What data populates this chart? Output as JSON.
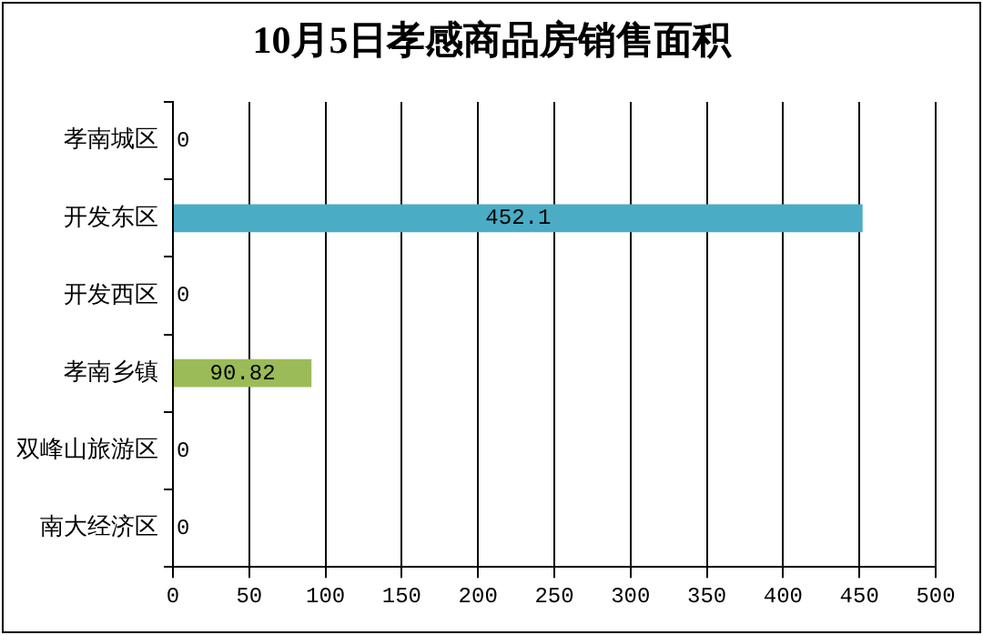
{
  "chart_data": {
    "type": "bar",
    "orientation": "horizontal",
    "title": "10月5日孝感商品房销售面积",
    "categories": [
      "孝南城区",
      "开发东区",
      "开发西区",
      "孝南乡镇",
      "双峰山旅游区",
      "南大经济区"
    ],
    "values": [
      0,
      452.1,
      0,
      90.82,
      0,
      0
    ],
    "colors": [
      "#4f81bd",
      "#4bacc6",
      "#c0504d",
      "#9bbb59",
      "#8064a2",
      "#f79646"
    ],
    "xlim": [
      0,
      500
    ],
    "xticks": [
      0,
      50,
      100,
      150,
      200,
      250,
      300,
      350,
      400,
      450,
      500
    ],
    "grid": "x",
    "data_labels": true,
    "legend": false
  }
}
